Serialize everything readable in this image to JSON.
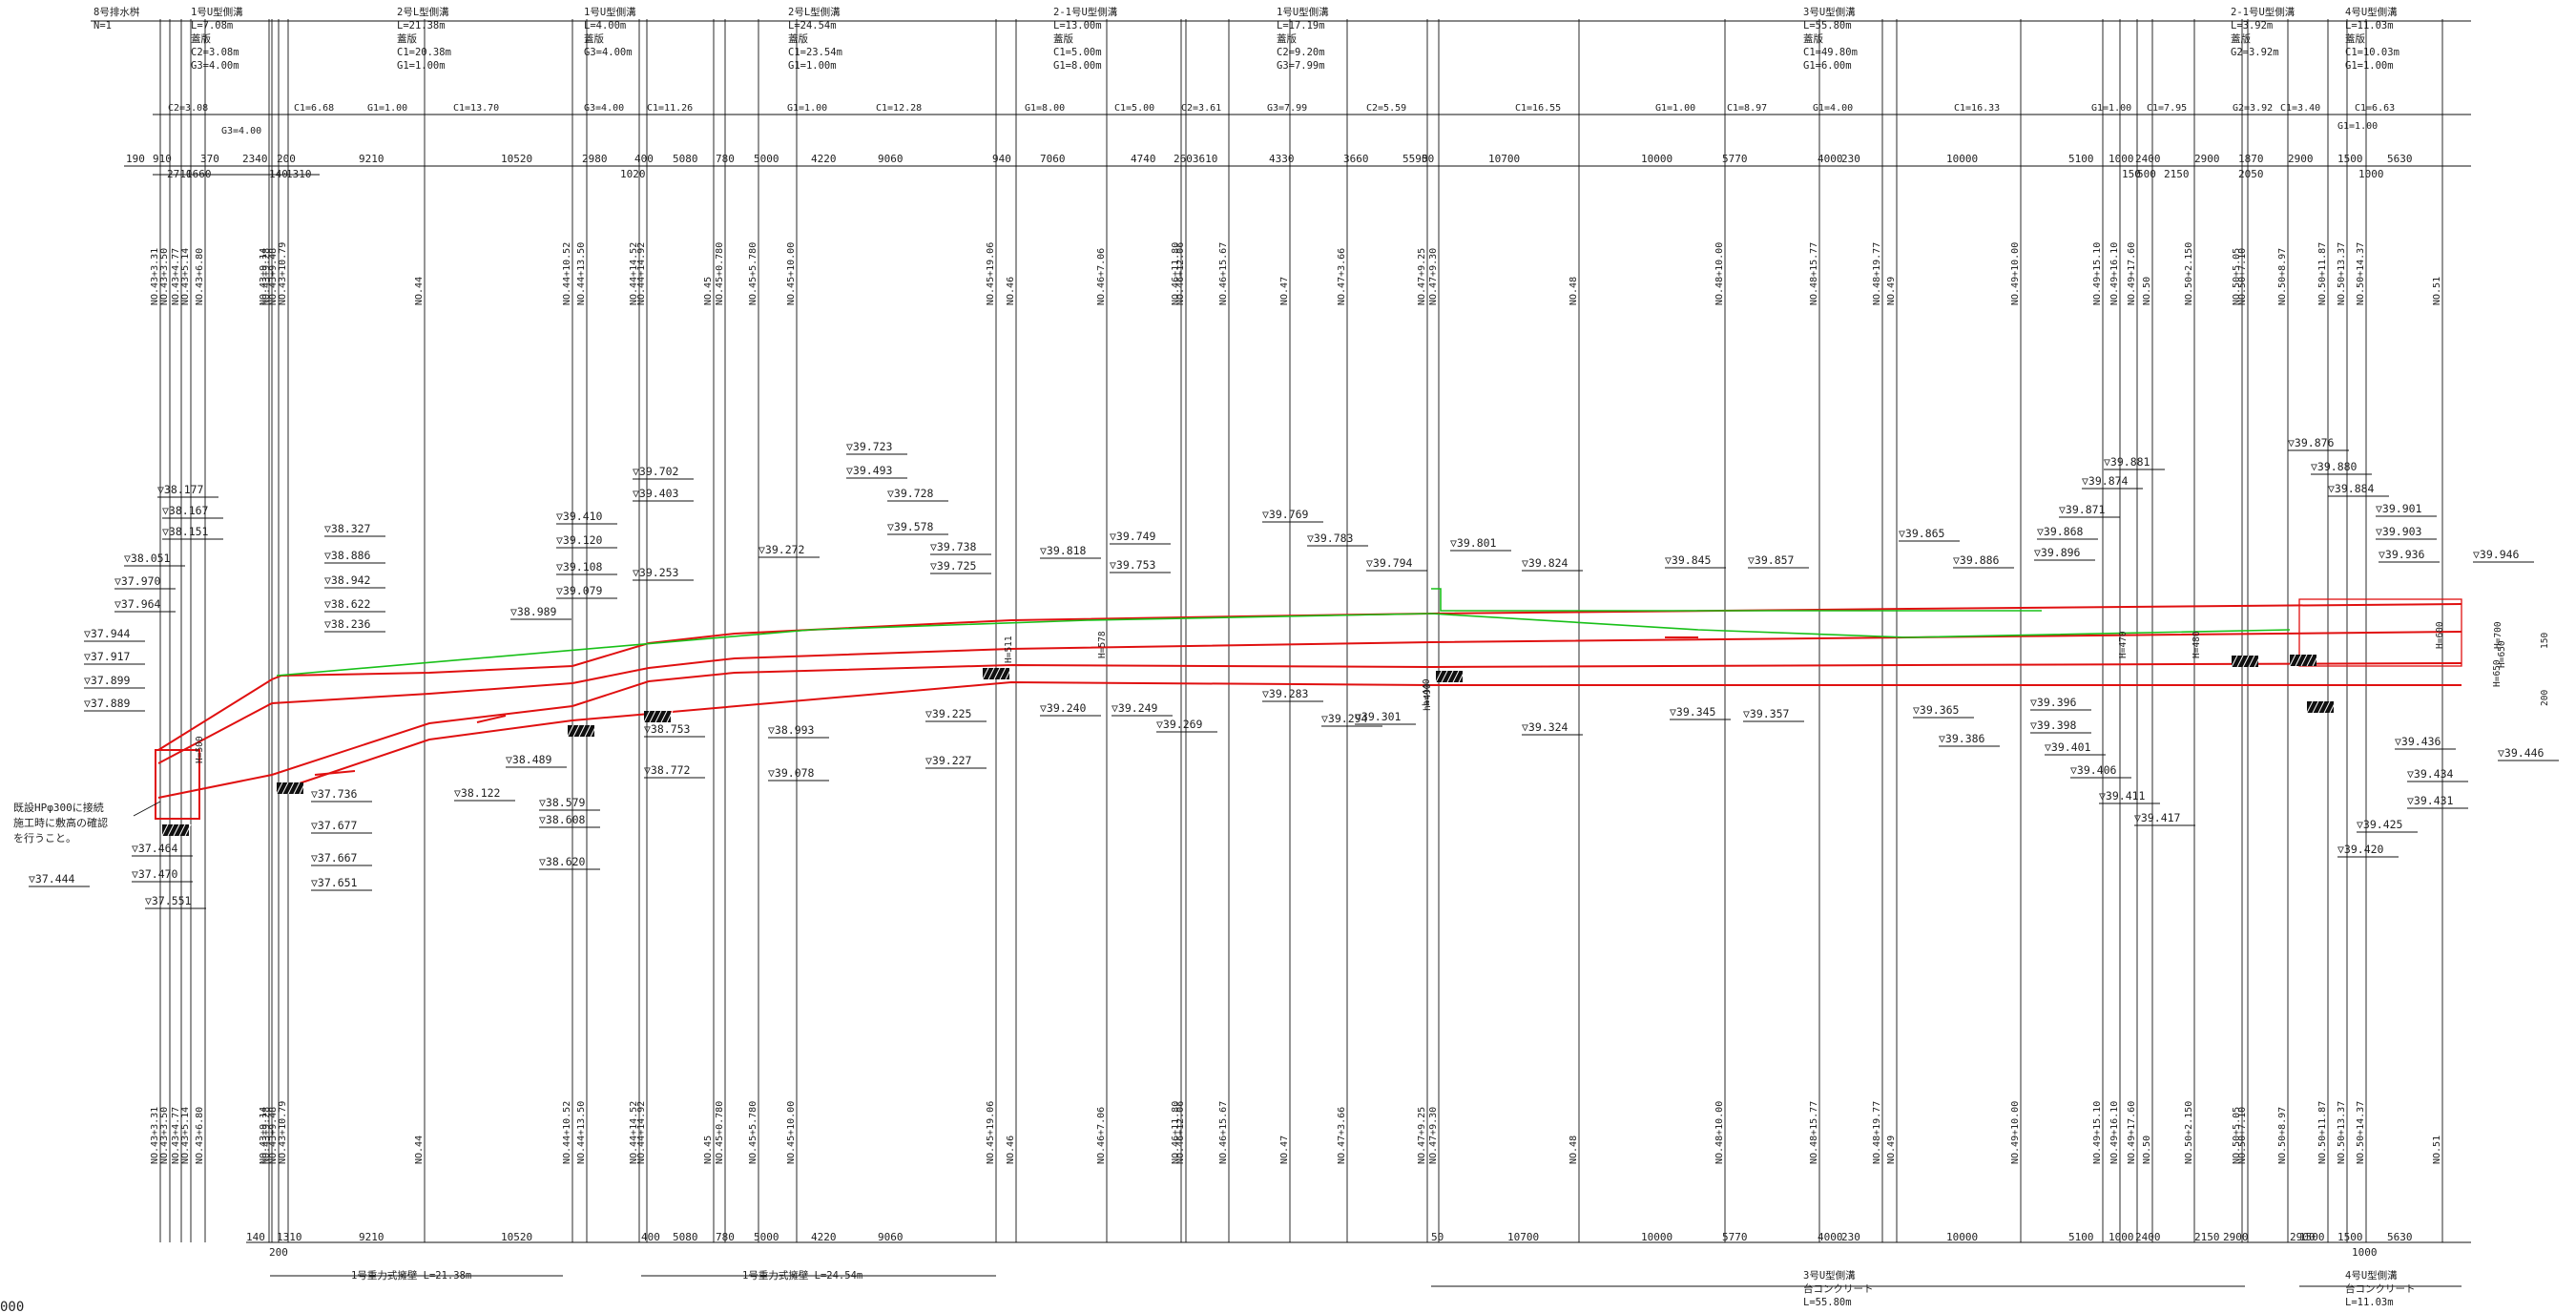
{
  "top_sections": [
    {
      "title": "8号排水桝",
      "lines": [
        "N=1"
      ]
    },
    {
      "title": "1号U型側溝",
      "lines": [
        "L=7.08m",
        "蓋版",
        "C2=3.08m",
        "G3=4.00m"
      ]
    },
    {
      "title": "2号L型側溝",
      "lines": [
        "L=21.38m",
        "蓋版",
        "C1=20.38m",
        "G1=1.00m"
      ]
    },
    {
      "title": "1号U型側溝",
      "lines": [
        "L=4.00m",
        "蓋版",
        "G3=4.00m"
      ]
    },
    {
      "title": "2号L型側溝",
      "lines": [
        "L=24.54m",
        "蓋版",
        "C1=23.54m",
        "G1=1.00m"
      ]
    },
    {
      "title": "2-1号U型側溝",
      "lines": [
        "L=13.00m",
        "蓋版",
        "C1=5.00m",
        "G1=8.00m"
      ]
    },
    {
      "title": "1号U型側溝",
      "lines": [
        "L=17.19m",
        "蓋版",
        "C2=9.20m",
        "G3=7.99m"
      ]
    },
    {
      "title": "3号U型側溝",
      "lines": [
        "L=55.80m",
        "蓋版",
        "C1=49.80m",
        "G1=6.00m"
      ]
    },
    {
      "title": "2-1号U型側溝",
      "lines": [
        "L=3.92m",
        "蓋版",
        "G2=3.92m"
      ]
    },
    {
      "title": "4号U型側溝",
      "lines": [
        "L=11.03m",
        "蓋版",
        "C1=10.03m",
        "G1=1.00m"
      ]
    }
  ],
  "cover_labels": [
    "C2=3.08",
    "G3=4.00",
    "C1=6.68",
    "G1=1.00",
    "C1=13.70",
    "G3=4.00",
    "C1=11.26",
    "G1=1.00",
    "C1=12.28",
    "G1=8.00",
    "C1=5.00",
    "C2=3.61",
    "G3=7.99",
    "C2=5.59",
    "C1=16.55",
    "G1=1.00",
    "C1=8.97",
    "G1=4.00",
    "C1=16.33",
    "G1=1.00",
    "C1=7.95",
    "G2=3.92",
    "C1=3.40",
    "C1=6.63",
    "G1=1.00"
  ],
  "top_dims": [
    "190",
    "910",
    "370",
    "2340",
    "200",
    "9210",
    "10520",
    "2980",
    "400",
    "5080",
    "780",
    "5000",
    "4220",
    "9060",
    "940",
    "7060",
    "4740",
    "2603610",
    "4330",
    "3660",
    "5590",
    "50",
    "10700",
    "10000",
    "5770",
    "4000",
    "230",
    "10000",
    "5100",
    "1000",
    "2400",
    "2900",
    "1870",
    "2900",
    "1500",
    "5630",
    "2710",
    "1660",
    "140",
    "1310",
    "1020",
    "150",
    "500",
    "2150",
    "1000",
    "2050"
  ],
  "station_labels": [
    "NO.43+3.31",
    "NO.43+3.50",
    "NO.43+4.77",
    "NO.43+5.14",
    "NO.43+6.80",
    "NO.43+9.14",
    "NO.43+9.48",
    "NO.43+10.79",
    "NO.43+9.28",
    "NO.44",
    "NO.44+10.52",
    "NO.44+13.50",
    "NO.44+14.52",
    "NO.44+14.92",
    "NO.45",
    "NO.45+0.780",
    "NO.45+5.780",
    "NO.45+10.00",
    "NO.45+19.06",
    "NO.46",
    "NO.46+7.06",
    "NO.46+11.80",
    "NO.46+12.06",
    "NO.46+15.67",
    "NO.47",
    "NO.47+3.66",
    "NO.47+9.25",
    "NO.47+9.30",
    "NO.48",
    "NO.48+10.00",
    "NO.48+15.77",
    "NO.48+19.77",
    "NO.49",
    "NO.49+10.00",
    "NO.49+15.10",
    "NO.49+16.10",
    "NO.49+17.60",
    "NO.50",
    "NO.50+2.150",
    "NO.50+5.05",
    "NO.50+7.10",
    "NO.50+8.97",
    "NO.50+11.87",
    "NO.50+13.37",
    "NO.50+14.37",
    "NO.51"
  ],
  "upper_elevations": [
    "▽38.177",
    "▽38.167",
    "▽38.151",
    "▽38.051",
    "▽37.970",
    "▽37.964",
    "▽37.944",
    "▽37.917",
    "▽37.899",
    "▽37.889",
    "▽38.327",
    "▽38.886",
    "▽38.942",
    "▽38.622",
    "▽38.236",
    "▽39.410",
    "▽39.120",
    "▽39.108",
    "▽39.079",
    "▽38.989",
    "▽39.702",
    "▽39.403",
    "▽39.253",
    "▽39.272",
    "▽39.723",
    "▽39.493",
    "▽39.728",
    "▽39.578",
    "▽39.738",
    "▽39.725",
    "▽39.818",
    "▽39.749",
    "▽39.753",
    "▽39.769",
    "▽39.783",
    "▽39.794",
    "▽39.801",
    "▽39.824",
    "▽39.845",
    "▽39.857",
    "▽39.865",
    "▽39.886",
    "▽39.881",
    "▽39.874",
    "▽39.871",
    "▽39.868",
    "▽39.896",
    "▽39.876",
    "▽39.880",
    "▽39.884",
    "▽39.901",
    "▽39.903",
    "▽39.936",
    "▽39.946"
  ],
  "lower_elevations": [
    "▽37.736",
    "▽37.677",
    "▽37.667",
    "▽37.651",
    "▽37.464",
    "▽37.470",
    "▽37.444",
    "▽37.551",
    "▽38.122",
    "▽38.489",
    "▽38.579",
    "▽38.608",
    "▽38.620",
    "▽38.753",
    "▽38.772",
    "▽38.993",
    "▽39.078",
    "▽39.225",
    "▽39.227",
    "▽39.240",
    "▽39.249",
    "▽39.269",
    "▽39.283",
    "▽39.294",
    "▽39.301",
    "▽39.324",
    "▽39.345",
    "▽39.357",
    "▽39.365",
    "▽39.386",
    "▽39.396",
    "▽39.398",
    "▽39.401",
    "▽39.406",
    "▽39.411",
    "▽39.417",
    "▽39.436",
    "▽39.434",
    "▽39.431",
    "▽39.425",
    "▽39.420",
    "▽39.446"
  ],
  "height_labels": [
    "H=500",
    "H=578",
    "H=511",
    "H=470",
    "H=480",
    "H=650",
    "h=440",
    "h=490",
    "H=600",
    "H=700",
    "H=650",
    "150",
    "200"
  ],
  "note_lines": [
    "既設HPφ300に接続",
    "施工時に敷高の確認",
    "を行うこと。"
  ],
  "bottom_dims": [
    "140",
    "1310",
    "200",
    "9210",
    "10520",
    "400",
    "5080",
    "780",
    "5000",
    "4220",
    "9060",
    "50",
    "10700",
    "10000",
    "5770",
    "4000",
    "230",
    "10000",
    "5100",
    "1000",
    "2400",
    "2150",
    "2900",
    "1500",
    "2900",
    "1500",
    "5630",
    "1000"
  ],
  "bottom_sections": [
    {
      "lines": [
        "1号重力式擁壁 L=21.38m"
      ]
    },
    {
      "lines": [
        "1号重力式擁壁 L=24.54m"
      ]
    },
    {
      "lines": [
        "3号U型側溝",
        "台コンクリート",
        "L=55.80m"
      ]
    },
    {
      "lines": [
        "4号U型側溝",
        "台コンクリート",
        "L=11.03m"
      ]
    }
  ],
  "scale_text": "000"
}
